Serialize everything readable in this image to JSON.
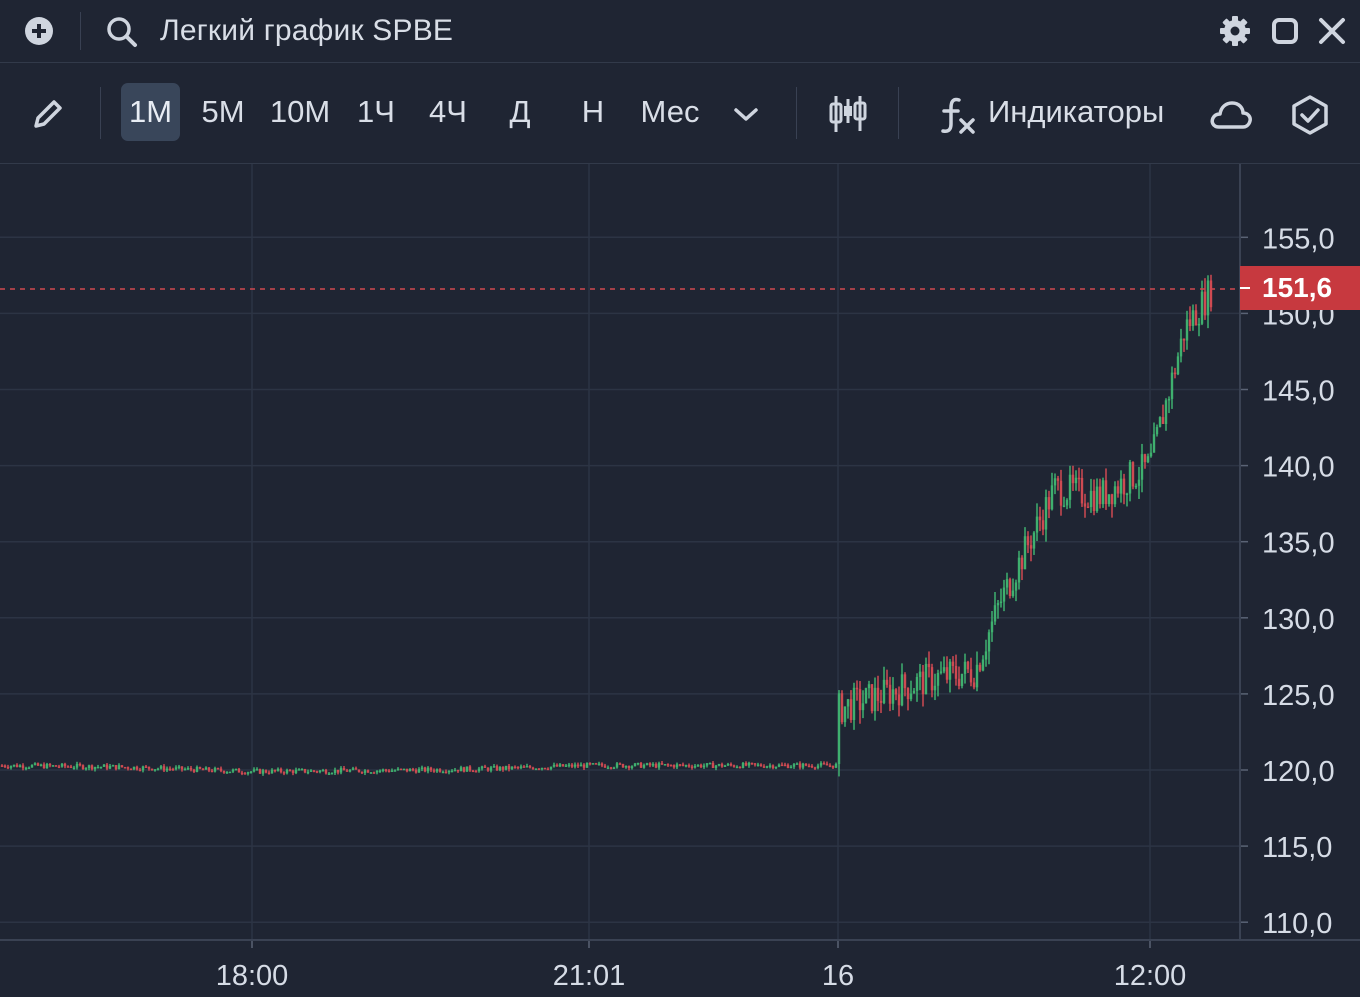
{
  "topbar": {
    "title": "Легкий график SPBE",
    "icons": [
      "add-circle-icon",
      "search-icon",
      "gear-icon",
      "maximize-icon",
      "close-icon"
    ]
  },
  "toolbar": {
    "timeframes": [
      "1М",
      "5М",
      "10М",
      "1Ч",
      "4Ч",
      "Д",
      "Н",
      "Мес"
    ],
    "active_timeframe": "1М",
    "indicators_label": "Индикаторы",
    "icons": [
      "pencil-icon",
      "chevron-down-icon",
      "candlestick-icon",
      "function-icon",
      "cloud-icon",
      "shield-check-icon"
    ]
  },
  "colors": {
    "background": "#1f2533",
    "grid": "#2c3444",
    "up": "#3fb06f",
    "down": "#cf4a52",
    "price_line": "#d0494f"
  },
  "chart_data": {
    "type": "candlestick",
    "ylim": [
      108,
      160
    ],
    "y_ticks": [
      "155,0",
      "150,0",
      "145,0",
      "140,0",
      "135,0",
      "130,0",
      "125,0",
      "120,0",
      "115,0",
      "110,0"
    ],
    "x_ticks": [
      "18:00",
      "21:01",
      "16",
      "12:00"
    ],
    "current_price": "151,6",
    "series": [
      {
        "x": "16:00",
        "y": 120.3
      },
      {
        "x": "17:00",
        "y": 120.2
      },
      {
        "x": "18:00",
        "y": 119.9
      },
      {
        "x": "19:00",
        "y": 120.0
      },
      {
        "x": "20:00",
        "y": 120.1
      },
      {
        "x": "21:01",
        "y": 120.3
      },
      {
        "x": "22:00",
        "y": 120.3
      },
      {
        "x": "23:00",
        "y": 120.3
      },
      {
        "x": "16",
        "y": 124.0
      },
      {
        "x": "08:00",
        "y": 126.0
      },
      {
        "x": "09:00",
        "y": 126.5
      },
      {
        "x": "10:00",
        "y": 131.0
      },
      {
        "x": "10:30",
        "y": 138.5
      },
      {
        "x": "11:00",
        "y": 138.0
      },
      {
        "x": "12:00",
        "y": 140.0
      },
      {
        "x": "12:30",
        "y": 149.0
      },
      {
        "x": "13:00",
        "y": 151.6
      }
    ]
  }
}
